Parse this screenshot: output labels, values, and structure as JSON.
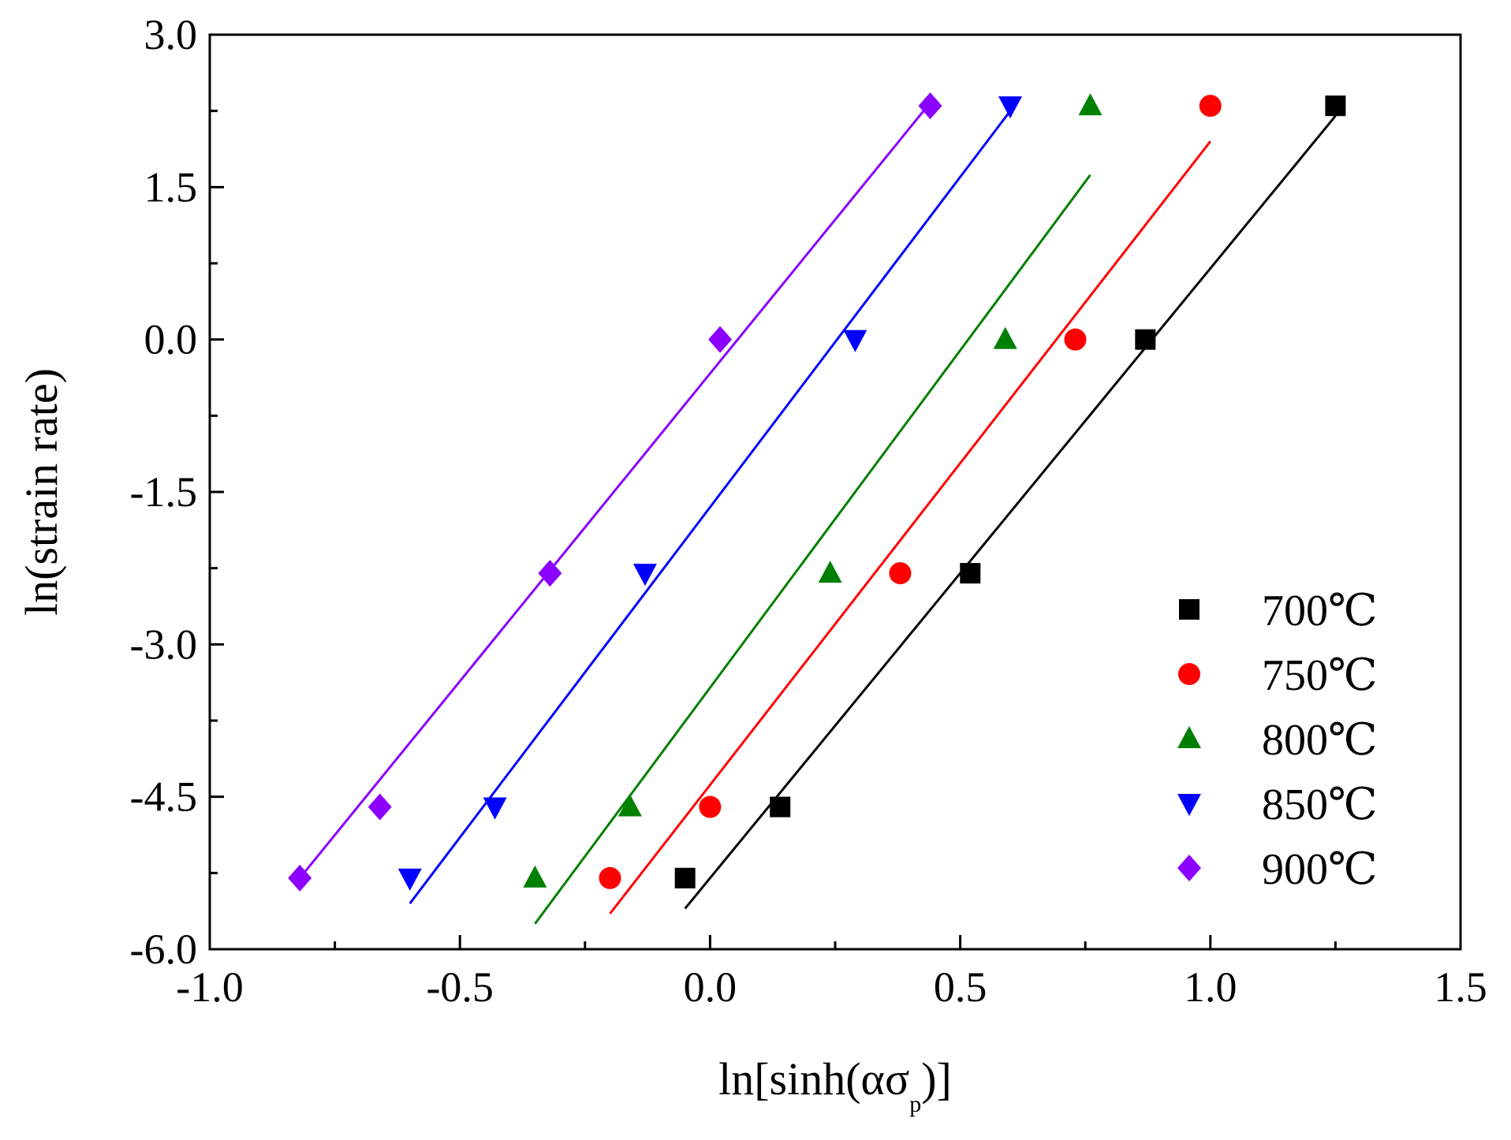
{
  "chart_data": {
    "type": "scatter",
    "title": "",
    "xlabel": {
      "main": "ln[sinh(ασ",
      "sub": "p",
      "end": ")]"
    },
    "ylabel": "ln(strain rate)",
    "xlim": [
      -1.0,
      1.5
    ],
    "ylim": [
      -6.0,
      3.0
    ],
    "x_major_ticks": [
      -1.0,
      -0.5,
      0.0,
      0.5,
      1.0,
      1.5
    ],
    "x_tick_labels": [
      "-1.0",
      "-0.5",
      "0.0",
      "0.5",
      "1.0",
      "1.5"
    ],
    "x_minor_ticks": [
      -0.75,
      -0.25,
      0.25,
      0.75,
      1.25
    ],
    "y_major_ticks": [
      -6.0,
      -4.5,
      -3.0,
      -1.5,
      0.0,
      1.5,
      3.0
    ],
    "y_tick_labels": [
      "-6.0",
      "-4.5",
      "-3.0",
      "-1.5",
      "0.0",
      "1.5",
      "3.0"
    ],
    "y_minor_ticks": [
      -5.25,
      -3.75,
      -2.25,
      -0.75,
      0.75,
      2.25
    ],
    "grid": false,
    "legend_position": "bottom-right",
    "series": [
      {
        "name": "700℃",
        "color": "#000000",
        "marker": "square",
        "points": [
          [
            -0.05,
            -5.3
          ],
          [
            0.14,
            -4.6
          ],
          [
            0.52,
            -2.3
          ],
          [
            0.87,
            0.0
          ],
          [
            1.25,
            2.3
          ]
        ],
        "fit": [
          [
            -0.05,
            -5.6
          ],
          [
            1.25,
            2.2
          ]
        ]
      },
      {
        "name": "750℃",
        "color": "#ff0000",
        "marker": "circle",
        "points": [
          [
            -0.2,
            -5.3
          ],
          [
            0.0,
            -4.6
          ],
          [
            0.38,
            -2.3
          ],
          [
            0.73,
            0.0
          ],
          [
            1.0,
            2.3
          ]
        ],
        "fit": [
          [
            -0.2,
            -5.65
          ],
          [
            1.0,
            1.95
          ]
        ]
      },
      {
        "name": "800℃",
        "color": "#008000",
        "marker": "triangle-up",
        "points": [
          [
            -0.35,
            -5.3
          ],
          [
            -0.16,
            -4.6
          ],
          [
            0.24,
            -2.3
          ],
          [
            0.59,
            0.0
          ],
          [
            0.76,
            2.3
          ]
        ],
        "fit": [
          [
            -0.35,
            -5.75
          ],
          [
            0.76,
            1.62
          ]
        ]
      },
      {
        "name": "850℃",
        "color": "#0000ff",
        "marker": "triangle-down",
        "points": [
          [
            -0.6,
            -5.3
          ],
          [
            -0.43,
            -4.6
          ],
          [
            -0.13,
            -2.3
          ],
          [
            0.29,
            0.0
          ],
          [
            0.6,
            2.3
          ]
        ],
        "fit": [
          [
            -0.6,
            -5.55
          ],
          [
            0.6,
            2.25
          ]
        ]
      },
      {
        "name": "900℃",
        "color": "#8b00ff",
        "marker": "diamond",
        "points": [
          [
            -0.82,
            -5.3
          ],
          [
            -0.66,
            -4.6
          ],
          [
            -0.32,
            -2.3
          ],
          [
            0.02,
            0.0
          ],
          [
            0.44,
            2.3
          ]
        ],
        "fit": [
          [
            -0.82,
            -5.3
          ],
          [
            0.44,
            2.33
          ]
        ]
      }
    ]
  }
}
